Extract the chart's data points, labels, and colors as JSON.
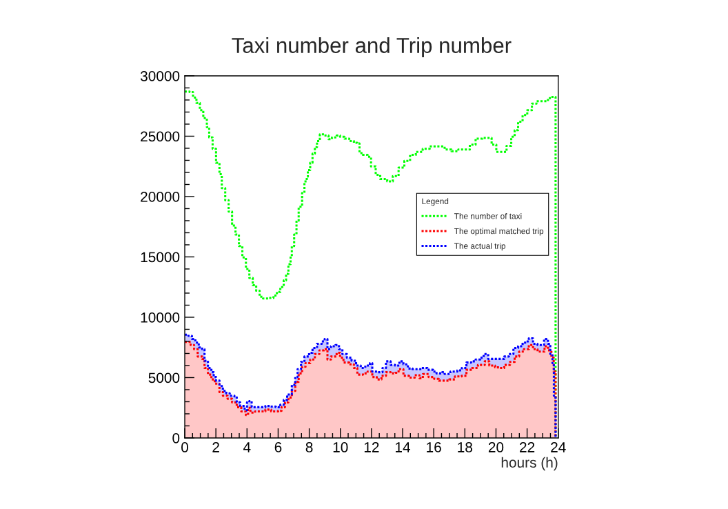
{
  "chart_data": {
    "type": "step",
    "title": "Taxi number and Trip number",
    "xlabel": "hours (h)",
    "legend_title": "Legend",
    "legend": "right",
    "grid": false,
    "line_style": "dotted",
    "xlim": [
      0,
      24
    ],
    "ylim": [
      0,
      30000
    ],
    "xticks": [
      0,
      {
        "value": 0.5,
        "label": null
      },
      {
        "value": 1,
        "label": null
      },
      {
        "value": 1.5,
        "label": null
      },
      2,
      {
        "value": 2.5,
        "label": null
      },
      {
        "value": 3,
        "label": null
      },
      {
        "value": 3.5,
        "label": null
      },
      4,
      {
        "value": 4.5,
        "label": null
      },
      {
        "value": 5,
        "label": null
      },
      {
        "value": 5.5,
        "label": null
      },
      6,
      {
        "value": 6.5,
        "label": null
      },
      {
        "value": 7,
        "label": null
      },
      {
        "value": 7.5,
        "label": null
      },
      8,
      {
        "value": 8.5,
        "label": null
      },
      {
        "value": 9,
        "label": null
      },
      {
        "value": 9.5,
        "label": null
      },
      10,
      {
        "value": 10.5,
        "label": null
      },
      {
        "value": 11,
        "label": null
      },
      {
        "value": 11.5,
        "label": null
      },
      12,
      {
        "value": 12.5,
        "label": null
      },
      {
        "value": 13,
        "label": null
      },
      {
        "value": 13.5,
        "label": null
      },
      14,
      {
        "value": 14.5,
        "label": null
      },
      {
        "value": 15,
        "label": null
      },
      {
        "value": 15.5,
        "label": null
      },
      16,
      {
        "value": 16.5,
        "label": null
      },
      {
        "value": 17,
        "label": null
      },
      {
        "value": 17.5,
        "label": null
      },
      18,
      {
        "value": 18.5,
        "label": null
      },
      {
        "value": 19,
        "label": null
      },
      {
        "value": 19.5,
        "label": null
      },
      20,
      {
        "value": 20.5,
        "label": null
      },
      {
        "value": 21,
        "label": null
      },
      {
        "value": 21.5,
        "label": null
      },
      22,
      {
        "value": 22.5,
        "label": null
      },
      {
        "value": 23,
        "label": null
      },
      {
        "value": 23.5,
        "label": null
      },
      24
    ],
    "yticks": [
      0,
      {
        "value": 1000,
        "label": null
      },
      {
        "value": 2000,
        "label": null
      },
      {
        "value": 3000,
        "label": null
      },
      {
        "value": 4000,
        "label": null
      },
      5000,
      {
        "value": 6000,
        "label": null
      },
      {
        "value": 7000,
        "label": null
      },
      {
        "value": 8000,
        "label": null
      },
      {
        "value": 9000,
        "label": null
      },
      10000,
      {
        "value": 11000,
        "label": null
      },
      {
        "value": 12000,
        "label": null
      },
      {
        "value": 13000,
        "label": null
      },
      {
        "value": 14000,
        "label": null
      },
      15000,
      {
        "value": 16000,
        "label": null
      },
      {
        "value": 17000,
        "label": null
      },
      {
        "value": 18000,
        "label": null
      },
      {
        "value": 19000,
        "label": null
      },
      20000,
      {
        "value": 21000,
        "label": null
      },
      {
        "value": 22000,
        "label": null
      },
      {
        "value": 23000,
        "label": null
      },
      {
        "value": 24000,
        "label": null
      },
      25000,
      {
        "value": 26000,
        "label": null
      },
      {
        "value": 27000,
        "label": null
      },
      {
        "value": 28000,
        "label": null
      },
      {
        "value": 29000,
        "label": null
      },
      30000
    ],
    "series": [
      {
        "name": "The number of taxi",
        "color": "#00ff00",
        "x": [
          0,
          0.31,
          0.53,
          0.75,
          0.97,
          1.19,
          1.42,
          1.57,
          1.79,
          2.01,
          2.23,
          2.38,
          2.6,
          2.82,
          3.04,
          3.26,
          3.48,
          3.7,
          3.93,
          4.15,
          4.37,
          4.59,
          4.81,
          5.03,
          5.4,
          5.7,
          5.92,
          6.14,
          6.36,
          6.51,
          6.66,
          6.8,
          6.88,
          7.03,
          7.18,
          7.32,
          7.54,
          7.69,
          7.84,
          7.91,
          8.06,
          8.21,
          8.36,
          8.5,
          8.68,
          8.95,
          9.24,
          9.46,
          9.76,
          9.98,
          10.27,
          10.57,
          10.87,
          11.09,
          11.23,
          11.45,
          11.75,
          11.97,
          12.27,
          12.56,
          13.01,
          13.37,
          13.74,
          14.11,
          14.48,
          14.85,
          15.29,
          15.74,
          16.25,
          16.7,
          17.14,
          17.58,
          17.95,
          18.32,
          18.69,
          19.13,
          19.5,
          19.72,
          20.02,
          20.39,
          20.68,
          20.98,
          21.2,
          21.42,
          21.71,
          22.01,
          22.31,
          22.6,
          23.04,
          23.34,
          23.56,
          23.83
        ],
        "values": [
          28700,
          28650,
          28200,
          27750,
          27150,
          26500,
          25750,
          24900,
          23950,
          22800,
          21850,
          20700,
          19700,
          18750,
          17600,
          16850,
          15900,
          14950,
          14000,
          13250,
          12650,
          12200,
          11700,
          11550,
          11600,
          11800,
          12100,
          12500,
          13050,
          13600,
          14400,
          15050,
          15900,
          16850,
          18000,
          19150,
          20300,
          21250,
          21650,
          22200,
          22800,
          23550,
          24100,
          24600,
          25150,
          25050,
          24750,
          24900,
          25050,
          24950,
          24800,
          24600,
          24450,
          24400,
          23600,
          23450,
          23300,
          22500,
          21800,
          21450,
          21250,
          21700,
          22400,
          22950,
          23450,
          23700,
          23950,
          24150,
          24150,
          23900,
          23750,
          23900,
          23900,
          24300,
          24800,
          24850,
          24850,
          24300,
          23700,
          23700,
          24200,
          24950,
          25500,
          26200,
          26750,
          27150,
          27700,
          27900,
          27900,
          28150,
          28250,
          0
        ]
      },
      {
        "name": "The optimal matched trip",
        "color": "#ff0000",
        "type": "area",
        "x": [
          0,
          0.38,
          0.6,
          0.83,
          1.12,
          1.27,
          1.49,
          1.71,
          1.93,
          2.23,
          2.45,
          2.75,
          3.04,
          3.34,
          3.63,
          3.93,
          4.07,
          4.22,
          4.52,
          4.89,
          5.18,
          5.55,
          6.0,
          6.22,
          6.44,
          6.66,
          6.88,
          7.1,
          7.32,
          7.54,
          7.76,
          8.06,
          8.36,
          8.65,
          8.95,
          9.17,
          9.39,
          9.76,
          9.98,
          10.2,
          10.57,
          10.87,
          11.09,
          11.45,
          11.75,
          12.05,
          12.34,
          12.64,
          12.93,
          13.23,
          13.52,
          13.74,
          14.05,
          14.41,
          14.78,
          15.08,
          15.3,
          15.67,
          16.03,
          16.33,
          16.7,
          17.0,
          17.36,
          17.8,
          18.1,
          18.47,
          18.84,
          19.28,
          19.57,
          19.94,
          20.24,
          20.53,
          20.9,
          21.2,
          21.49,
          21.79,
          22.11,
          22.38,
          22.67,
          22.97,
          23.12,
          23.34,
          23.56,
          23.71,
          23.83
        ],
        "values": [
          7950,
          7700,
          7350,
          6750,
          6550,
          5800,
          5250,
          4850,
          4500,
          3800,
          3500,
          3250,
          2950,
          2550,
          2200,
          1900,
          2500,
          2100,
          2200,
          2200,
          2350,
          2200,
          2250,
          2550,
          2950,
          3350,
          3900,
          4650,
          5350,
          5900,
          6200,
          6500,
          6950,
          7250,
          7350,
          6500,
          6750,
          7050,
          6650,
          6250,
          6100,
          5800,
          5250,
          5350,
          5500,
          5050,
          4850,
          5150,
          5450,
          5350,
          5400,
          5700,
          5150,
          5000,
          5200,
          4950,
          5300,
          5050,
          4900,
          4750,
          4750,
          4850,
          5100,
          5150,
          5650,
          5800,
          6050,
          6350,
          6000,
          5850,
          5800,
          6050,
          6300,
          6750,
          7150,
          7350,
          7700,
          7350,
          7150,
          7150,
          7600,
          7250,
          6650,
          5500,
          0
        ]
      },
      {
        "name": "The actual trip",
        "color": "#0000ff",
        "type": "area",
        "x": [
          0,
          0.24,
          0.46,
          0.68,
          0.9,
          1.12,
          1.27,
          1.49,
          1.71,
          1.86,
          2.01,
          2.23,
          2.45,
          2.67,
          2.89,
          3.19,
          3.34,
          3.56,
          3.85,
          4.0,
          4.15,
          4.3,
          4.59,
          4.89,
          5.18,
          5.48,
          5.85,
          6.14,
          6.36,
          6.58,
          6.88,
          7.1,
          7.25,
          7.47,
          7.69,
          7.99,
          8.21,
          8.5,
          8.8,
          8.99,
          9.17,
          9.39,
          9.68,
          9.91,
          10.13,
          10.42,
          10.72,
          11.01,
          11.31,
          11.6,
          11.9,
          12.05,
          12.41,
          12.71,
          12.93,
          13.23,
          13.52,
          13.79,
          14.05,
          14.34,
          14.63,
          14.93,
          15.22,
          15.59,
          15.96,
          16.18,
          16.55,
          16.7,
          17.07,
          17.51,
          17.8,
          18.1,
          18.4,
          18.69,
          18.99,
          19.21,
          19.5,
          19.87,
          20.24,
          20.53,
          20.83,
          21.12,
          21.42,
          21.71,
          21.94,
          22.11,
          22.38,
          22.67,
          22.9,
          23.09,
          23.34,
          23.49,
          23.63,
          23.72,
          23.83
        ],
        "values": [
          8550,
          8450,
          8200,
          7900,
          7500,
          7350,
          6400,
          5800,
          5450,
          5050,
          4750,
          4300,
          3900,
          3700,
          3500,
          3450,
          2950,
          2650,
          2300,
          2950,
          3050,
          2550,
          2550,
          2550,
          2650,
          2600,
          2550,
          2750,
          3150,
          3600,
          4400,
          5050,
          5700,
          6300,
          6750,
          7050,
          7450,
          7800,
          8000,
          8200,
          7350,
          7600,
          7700,
          7350,
          6950,
          6650,
          6400,
          6000,
          5800,
          6000,
          6200,
          5500,
          5450,
          5800,
          6350,
          6050,
          6000,
          6350,
          6100,
          5750,
          5700,
          5700,
          5800,
          5650,
          5500,
          5350,
          5450,
          5300,
          5500,
          5600,
          5800,
          6250,
          6350,
          6500,
          6650,
          6950,
          6550,
          6550,
          6550,
          6750,
          6950,
          7450,
          7600,
          7900,
          8000,
          8250,
          7800,
          7700,
          7700,
          8200,
          7800,
          6950,
          6200,
          3500,
          0
        ]
      }
    ]
  }
}
